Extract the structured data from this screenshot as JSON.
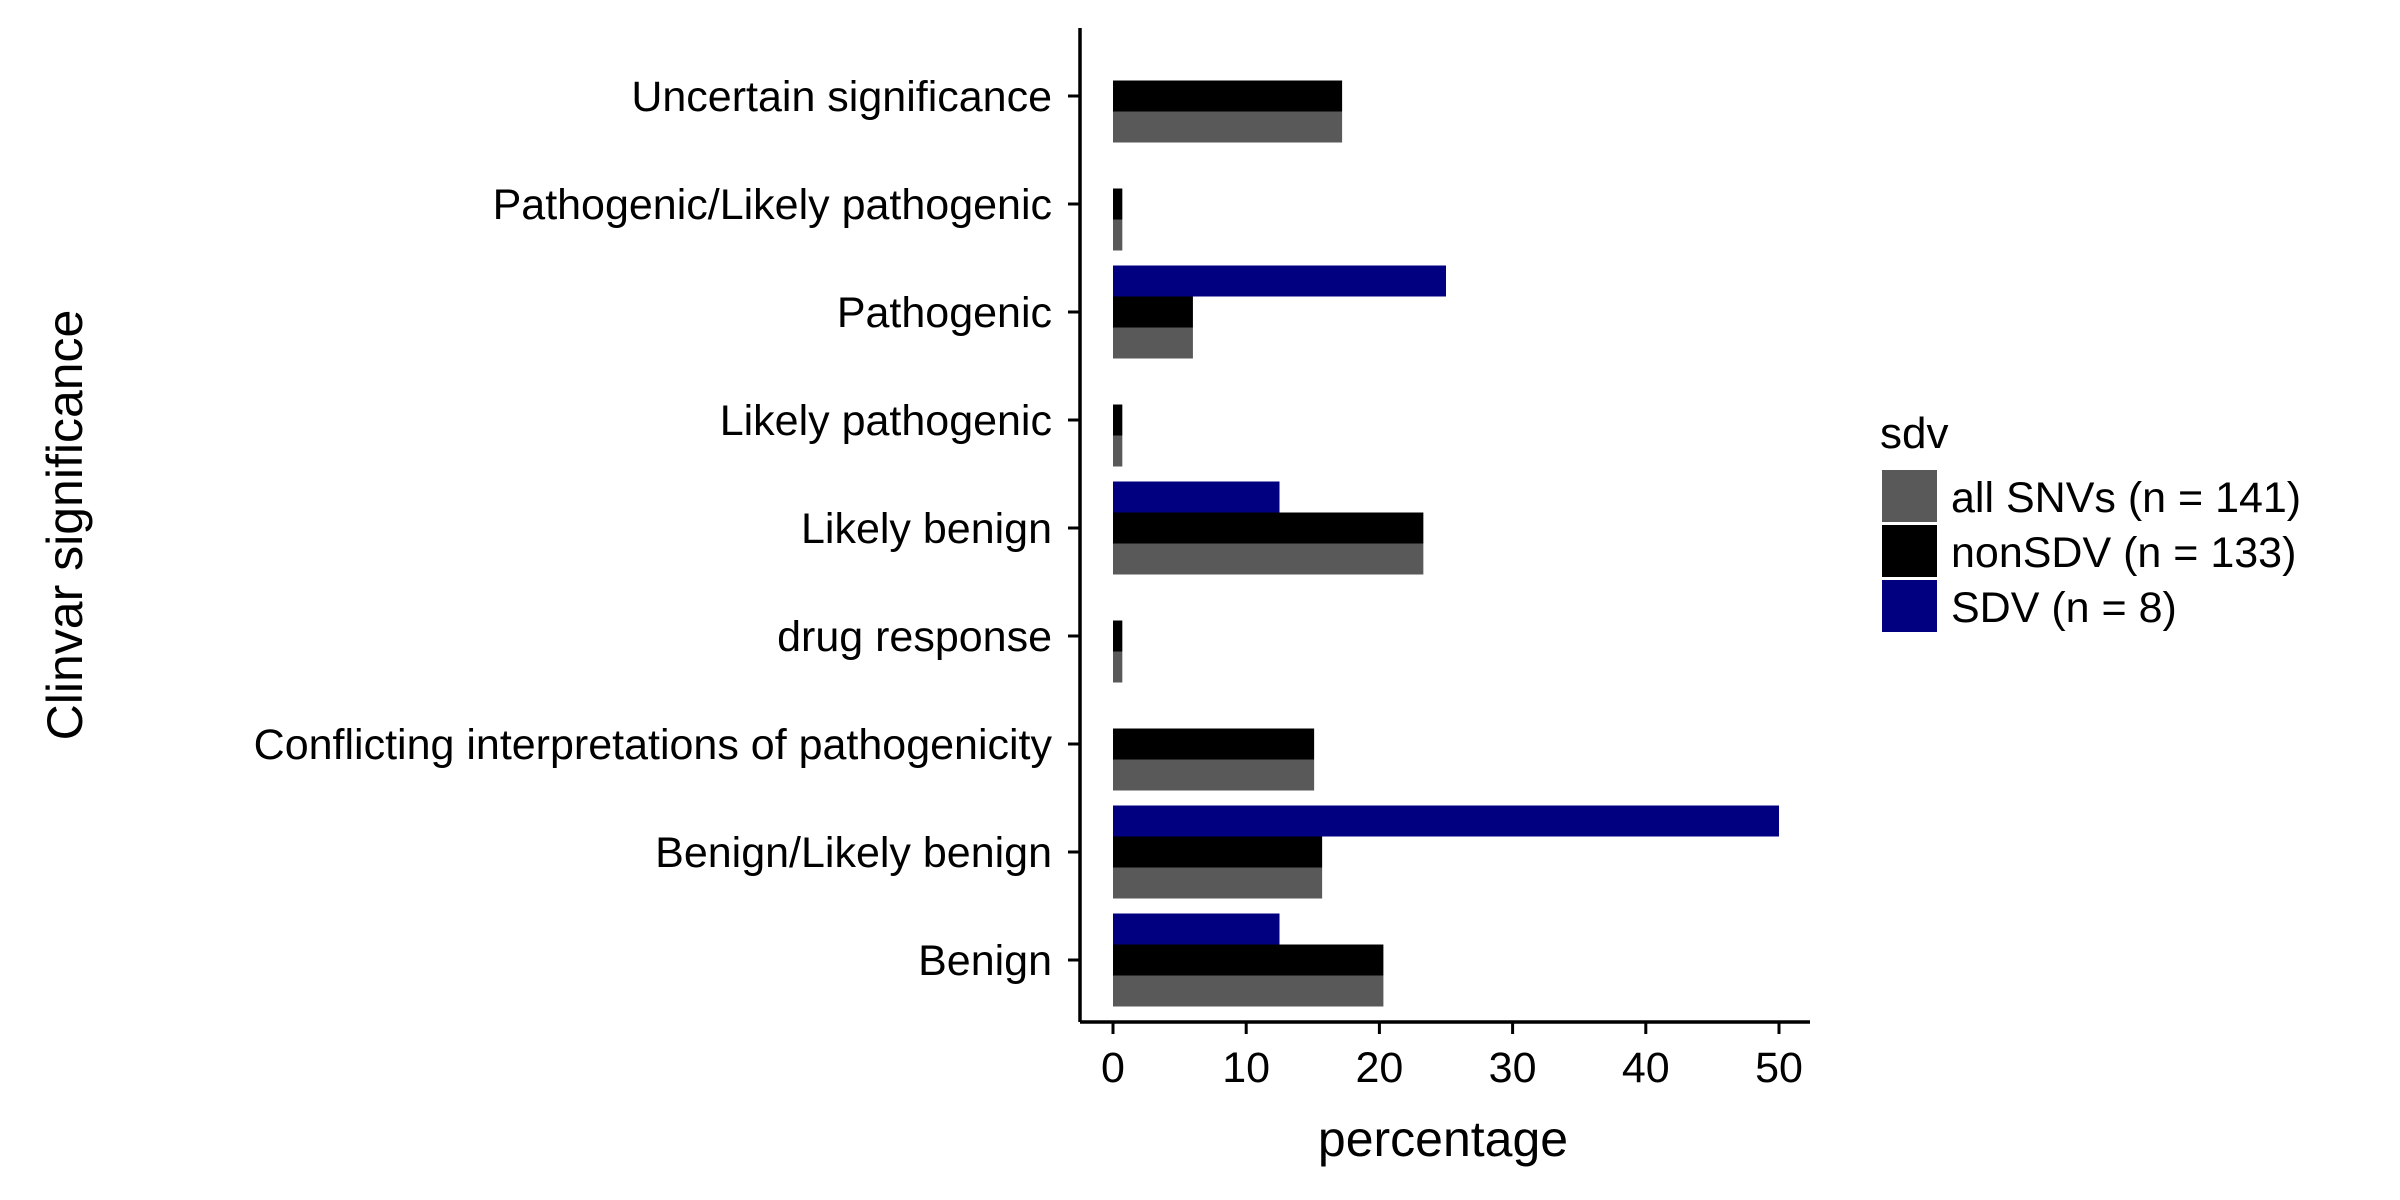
{
  "chart_data": {
    "type": "bar",
    "orientation": "horizontal",
    "xlabel": "percentage",
    "ylabel": "Clinvar significance",
    "xlim": [
      0,
      52.5
    ],
    "xticks": [
      0,
      10,
      20,
      30,
      40,
      50
    ],
    "grid": false,
    "legend": {
      "title": "sdv",
      "position": "right"
    },
    "categories": [
      "Uncertain significance",
      "Pathogenic/Likely pathogenic",
      "Pathogenic",
      "Likely pathogenic",
      "Likely benign",
      "drug response",
      "Conflicting interpretations of pathogenicity",
      "Benign/Likely benign",
      "Benign"
    ],
    "series": [
      {
        "name": "all SNVs (n = 141)",
        "color": "#595959",
        "values": [
          17.2,
          0.7,
          6.0,
          0.7,
          23.3,
          0.7,
          15.1,
          15.7,
          20.3
        ]
      },
      {
        "name": "nonSDV (n = 133)",
        "color": "#000000",
        "values": [
          17.2,
          0.7,
          6.0,
          0.7,
          23.3,
          0.7,
          15.1,
          15.7,
          20.3
        ]
      },
      {
        "name": "SDV (n = 8)",
        "color": "#000080",
        "values": [
          0,
          0,
          25.0,
          0,
          12.5,
          0,
          0,
          50.0,
          12.5
        ]
      }
    ]
  }
}
